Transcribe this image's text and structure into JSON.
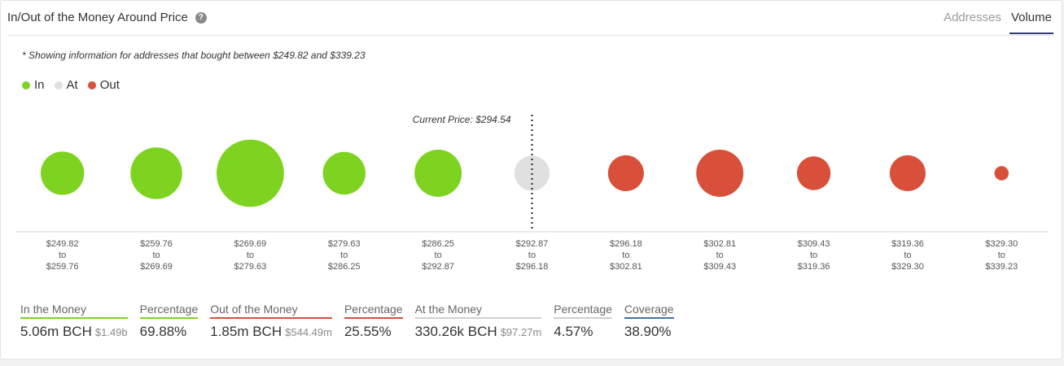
{
  "header": {
    "title": "In/Out of the Money Around Price",
    "help_icon": "question-circle-icon",
    "tabs": [
      {
        "label": "Addresses",
        "active": false
      },
      {
        "label": "Volume",
        "active": true
      }
    ]
  },
  "note": "* Showing information for addresses that bought between $249.82 and $339.23",
  "legend": [
    {
      "label": "In",
      "color": "#7ed321"
    },
    {
      "label": "At",
      "color": "#e0e0e0"
    },
    {
      "label": "Out",
      "color": "#d9503a"
    }
  ],
  "chart_data": {
    "type": "scatter",
    "current_price_label": "Current Price: $294.54",
    "current_price_index": 5,
    "colors": {
      "in": "#7ed321",
      "at": "#e0e0e0",
      "out": "#d9503a"
    },
    "buckets": [
      {
        "from": "$249.82",
        "to": "$259.76",
        "status": "in",
        "size": 0.58
      },
      {
        "from": "$259.76",
        "to": "$269.69",
        "status": "in",
        "size": 0.69
      },
      {
        "from": "$269.69",
        "to": "$279.63",
        "status": "in",
        "size": 0.9
      },
      {
        "from": "$279.63",
        "to": "$286.25",
        "status": "in",
        "size": 0.57
      },
      {
        "from": "$286.25",
        "to": "$292.87",
        "status": "in",
        "size": 0.63
      },
      {
        "from": "$292.87",
        "to": "$296.18",
        "status": "at",
        "size": 0.47
      },
      {
        "from": "$296.18",
        "to": "$302.81",
        "status": "out",
        "size": 0.48
      },
      {
        "from": "$302.81",
        "to": "$309.43",
        "status": "out",
        "size": 0.63
      },
      {
        "from": "$309.43",
        "to": "$319.36",
        "status": "out",
        "size": 0.45
      },
      {
        "from": "$319.36",
        "to": "$329.30",
        "status": "out",
        "size": 0.48
      },
      {
        "from": "$329.30",
        "to": "$339.23",
        "status": "out",
        "size": 0.19
      }
    ],
    "range_separator": "to"
  },
  "stats": [
    {
      "label": "In the Money",
      "value": "5.06m BCH",
      "sub": "$1.49b",
      "color": "#7ed321"
    },
    {
      "label": "Percentage",
      "value": "69.88%",
      "sub": "",
      "color": "#7ed321"
    },
    {
      "label": "Out of the Money",
      "value": "1.85m BCH",
      "sub": "$544.49m",
      "color": "#d9503a"
    },
    {
      "label": "Percentage",
      "value": "25.55%",
      "sub": "",
      "color": "#d9503a"
    },
    {
      "label": "At the Money",
      "value": "330.26k BCH",
      "sub": "$97.27m",
      "color": "#d0d0d0"
    },
    {
      "label": "Percentage",
      "value": "4.57%",
      "sub": "",
      "color": "#d0d0d0"
    },
    {
      "label": "Coverage",
      "value": "38.90%",
      "sub": "",
      "color": "#4a6fa5"
    }
  ]
}
